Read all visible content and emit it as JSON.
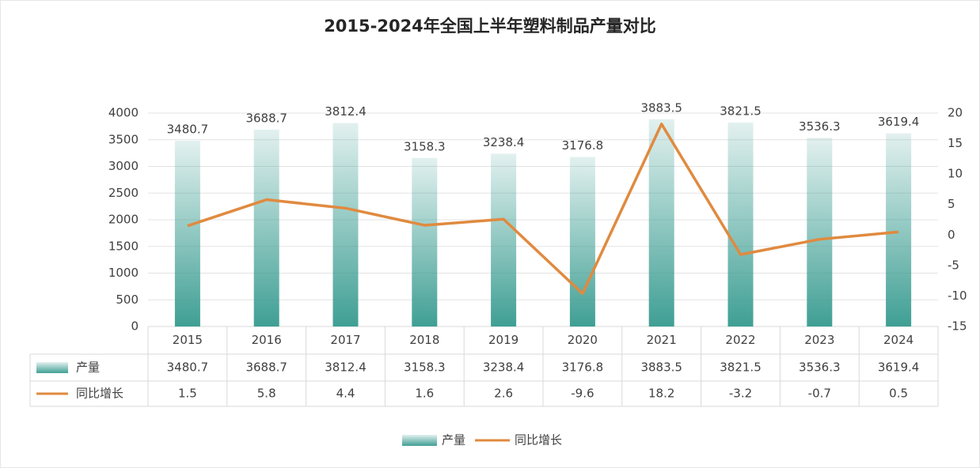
{
  "chart_data": {
    "type": "combo",
    "title": "2015-2024年全国上半年塑料制品产量对比",
    "categories": [
      "2015",
      "2016",
      "2017",
      "2018",
      "2019",
      "2020",
      "2021",
      "2022",
      "2023",
      "2024"
    ],
    "series": [
      {
        "name": "产量",
        "type": "bar",
        "color": "#3f9f94",
        "values": [
          3480.7,
          3688.7,
          3812.4,
          3158.3,
          3238.4,
          3176.8,
          3883.5,
          3821.5,
          3536.3,
          3619.4
        ]
      },
      {
        "name": "同比增长",
        "type": "line",
        "axis": "y2",
        "color": "#e08a3f",
        "values": [
          1.5,
          5.8,
          4.4,
          1.6,
          2.6,
          -9.6,
          18.2,
          -3.2,
          -0.7,
          0.5
        ]
      }
    ],
    "ylim": [
      0,
      4000
    ],
    "yticks": [
      0,
      500,
      1000,
      1500,
      2000,
      2500,
      3000,
      3500,
      4000
    ],
    "y2lim": [
      -15,
      20
    ],
    "y2ticks": [
      -15,
      -10,
      -5,
      0,
      5,
      10,
      15,
      20
    ],
    "grid": true,
    "data_table": true,
    "legend": "bottom"
  }
}
